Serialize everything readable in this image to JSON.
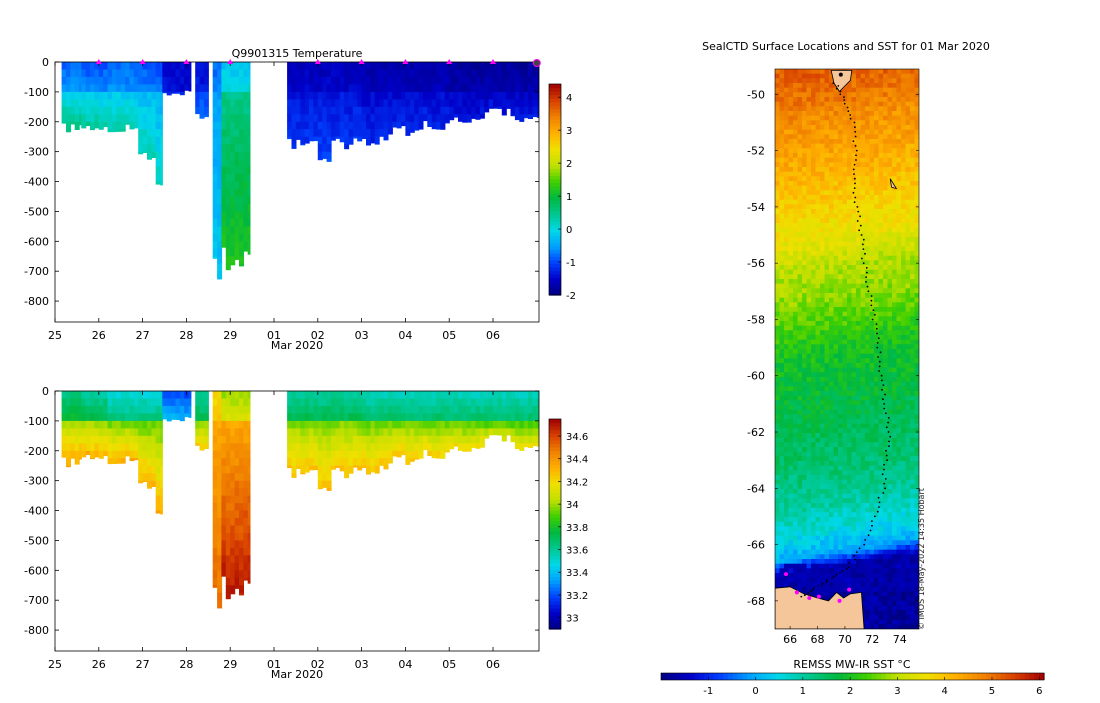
{
  "colors": {
    "land": "#f5c69a",
    "track": "#000000",
    "marker": "#ff00ff",
    "cmap": [
      "#000080",
      "#0000c8",
      "#0040ff",
      "#00a0ff",
      "#00d8e8",
      "#00c890",
      "#00b840",
      "#40d000",
      "#c0e000",
      "#f0e000",
      "#ffb000",
      "#f08000",
      "#d84000",
      "#a00000"
    ]
  },
  "chart_data": [
    {
      "type": "heatmap",
      "id": "temp",
      "title": "Q9901315  Temperature",
      "xlabel": "Mar 2020",
      "ylabel": "",
      "x_ticks": [
        "25",
        "26",
        "27",
        "28",
        "29",
        "01",
        "02",
        "03",
        "04",
        "05",
        "06"
      ],
      "x_range_days": [
        25,
        36.05
      ],
      "y_ticks": [
        0,
        -100,
        -200,
        -300,
        -400,
        -500,
        -600,
        -700,
        -800
      ],
      "ylim": [
        -870,
        0
      ],
      "colorbar": {
        "ticks": [
          "4",
          "3",
          "2",
          "1",
          "0",
          "-1",
          "-2"
        ],
        "range": [
          -2,
          4.4
        ]
      },
      "profile_markers_day": [
        26,
        27,
        28,
        29,
        31,
        32,
        33,
        34,
        35,
        36
      ],
      "profiles": [
        {
          "start": 25.15,
          "end": 25.6,
          "depth": 240,
          "deep_value": 0.6,
          "upper_value": -0.8
        },
        {
          "start": 25.6,
          "end": 26.2,
          "depth": 245,
          "deep_value": 0.5,
          "upper_value": -0.9
        },
        {
          "start": 26.2,
          "end": 26.9,
          "depth": 240,
          "deep_value": 0.4,
          "upper_value": -0.8
        },
        {
          "start": 26.9,
          "end": 27.1,
          "depth": 320,
          "deep_value": 0.3,
          "upper_value": -0.9
        },
        {
          "start": 27.1,
          "end": 27.4,
          "depth": 330,
          "deep_value": 0.3,
          "upper_value": -0.9
        },
        {
          "start": 27.3,
          "end": 27.45,
          "depth": 440,
          "deep_value": 0.2,
          "upper_value": -1.0
        },
        {
          "start": 27.45,
          "end": 28.1,
          "depth": 110,
          "deep_value": -1.0,
          "upper_value": -1.5
        },
        {
          "start": 28.2,
          "end": 28.5,
          "depth": 190,
          "deep_value": -0.7,
          "upper_value": -1.4
        },
        {
          "start": 28.6,
          "end": 28.8,
          "depth": 745,
          "deep_value": -0.2,
          "upper_value": -0.8
        },
        {
          "start": 28.8,
          "end": 29.45,
          "depth": 700,
          "deep_value": 1.2,
          "upper_value": -0.2
        },
        {
          "start": 30.3,
          "end": 31.0,
          "depth": 300,
          "deep_value": -1.1,
          "upper_value": -1.6
        },
        {
          "start": 31.0,
          "end": 31.3,
          "depth": 340,
          "deep_value": -1.0,
          "upper_value": -1.6
        },
        {
          "start": 31.3,
          "end": 32.0,
          "depth": 290,
          "deep_value": -1.1,
          "upper_value": -1.6
        },
        {
          "start": 32.0,
          "end": 32.6,
          "depth": 280,
          "deep_value": -1.2,
          "upper_value": -1.7
        },
        {
          "start": 32.6,
          "end": 33.2,
          "depth": 250,
          "deep_value": -1.2,
          "upper_value": -1.7
        },
        {
          "start": 33.2,
          "end": 34.0,
          "depth": 230,
          "deep_value": -1.2,
          "upper_value": -1.7
        },
        {
          "start": 34.0,
          "end": 34.8,
          "depth": 210,
          "deep_value": -1.3,
          "upper_value": -1.8
        },
        {
          "start": 34.8,
          "end": 35.5,
          "depth": 180,
          "deep_value": -1.3,
          "upper_value": -1.8
        },
        {
          "start": 35.5,
          "end": 36.05,
          "depth": 200,
          "deep_value": -1.3,
          "upper_value": -1.8
        }
      ]
    },
    {
      "type": "heatmap",
      "id": "salt",
      "title": "",
      "xlabel": "Mar 2020",
      "ylabel": "",
      "x_ticks": [
        "25",
        "26",
        "27",
        "28",
        "29",
        "01",
        "02",
        "03",
        "04",
        "05",
        "06"
      ],
      "x_range_days": [
        25,
        36.05
      ],
      "y_ticks": [
        0,
        -100,
        -200,
        -300,
        -400,
        -500,
        -600,
        -700,
        -800
      ],
      "ylim": [
        -870,
        0
      ],
      "colorbar": {
        "ticks": [
          "34.6",
          "34.4",
          "34.2",
          "34",
          "33.8",
          "33.6",
          "33.4",
          "33.2",
          "33"
        ],
        "range": [
          32.9,
          34.75
        ]
      },
      "profiles": [
        {
          "start": 25.15,
          "end": 25.6,
          "depth": 260,
          "deep_value": 34.37,
          "upper_value": 33.65
        },
        {
          "start": 25.6,
          "end": 26.2,
          "depth": 245,
          "deep_value": 34.36,
          "upper_value": 33.6
        },
        {
          "start": 26.2,
          "end": 26.9,
          "depth": 250,
          "deep_value": 34.36,
          "upper_value": 33.5
        },
        {
          "start": 26.9,
          "end": 27.1,
          "depth": 320,
          "deep_value": 34.34,
          "upper_value": 33.5
        },
        {
          "start": 27.1,
          "end": 27.4,
          "depth": 330,
          "deep_value": 34.34,
          "upper_value": 33.5
        },
        {
          "start": 27.3,
          "end": 27.45,
          "depth": 440,
          "deep_value": 34.35,
          "upper_value": 33.5
        },
        {
          "start": 27.45,
          "end": 28.1,
          "depth": 100,
          "deep_value": 34.2,
          "upper_value": 33.2
        },
        {
          "start": 28.2,
          "end": 28.5,
          "depth": 200,
          "deep_value": 34.3,
          "upper_value": 33.6
        },
        {
          "start": 28.6,
          "end": 28.8,
          "depth": 745,
          "deep_value": 34.5,
          "upper_value": 34.2
        },
        {
          "start": 28.8,
          "end": 29.45,
          "depth": 700,
          "deep_value": 34.7,
          "upper_value": 34.0
        },
        {
          "start": 30.3,
          "end": 31.0,
          "depth": 300,
          "deep_value": 34.3,
          "upper_value": 33.6
        },
        {
          "start": 31.0,
          "end": 31.3,
          "depth": 340,
          "deep_value": 34.3,
          "upper_value": 33.6
        },
        {
          "start": 31.3,
          "end": 32.0,
          "depth": 290,
          "deep_value": 34.3,
          "upper_value": 33.6
        },
        {
          "start": 32.0,
          "end": 32.6,
          "depth": 280,
          "deep_value": 34.3,
          "upper_value": 33.55
        },
        {
          "start": 32.6,
          "end": 33.2,
          "depth": 250,
          "deep_value": 34.3,
          "upper_value": 33.55
        },
        {
          "start": 33.2,
          "end": 34.0,
          "depth": 230,
          "deep_value": 34.28,
          "upper_value": 33.55
        },
        {
          "start": 34.0,
          "end": 34.8,
          "depth": 210,
          "deep_value": 34.25,
          "upper_value": 33.55
        },
        {
          "start": 34.8,
          "end": 35.5,
          "depth": 170,
          "deep_value": 34.2,
          "upper_value": 33.55
        },
        {
          "start": 35.5,
          "end": 36.05,
          "depth": 200,
          "deep_value": 34.2,
          "upper_value": 33.55
        }
      ]
    },
    {
      "type": "heatmap",
      "id": "map",
      "title": "SealCTD Surface Locations and SST for 01 Mar 2020",
      "xlabel": "REMSS MW-IR SST °C",
      "credit": "© IMOS 18-May-2022 14:35 Hobart",
      "x_ticks": [
        "66",
        "68",
        "70",
        "72",
        "74"
      ],
      "lon_range": [
        64.9,
        75.4
      ],
      "y_ticks": [
        "-50",
        "-52",
        "-54",
        "-56",
        "-58",
        "-60",
        "-62",
        "-64",
        "-66",
        "-68"
      ],
      "lat_range": [
        -69,
        -49.1
      ],
      "colorbar": {
        "ticks": [
          "-1",
          "0",
          "1",
          "2",
          "3",
          "4",
          "5",
          "6"
        ],
        "range": [
          -2,
          6.1
        ]
      },
      "sst_profile_by_lat": [
        {
          "lat": -49.2,
          "sst": 5.2
        },
        {
          "lat": -51.0,
          "sst": 4.6
        },
        {
          "lat": -53.0,
          "sst": 4.1
        },
        {
          "lat": -55.0,
          "sst": 3.5
        },
        {
          "lat": -56.0,
          "sst": 3.0
        },
        {
          "lat": -57.5,
          "sst": 2.6
        },
        {
          "lat": -59.0,
          "sst": 2.0
        },
        {
          "lat": -61.0,
          "sst": 1.7
        },
        {
          "lat": -63.0,
          "sst": 1.4
        },
        {
          "lat": -64.5,
          "sst": 1.0
        },
        {
          "lat": -65.5,
          "sst": 0.5
        },
        {
          "lat": -66.2,
          "sst": 0.0
        },
        {
          "lat": -66.7,
          "sst": -1.6
        },
        {
          "lat": -69.0,
          "sst": -1.8
        }
      ],
      "track": [
        {
          "lon": 69.3,
          "lat": -49.6
        },
        {
          "lon": 70.0,
          "lat": -50.2
        },
        {
          "lon": 70.6,
          "lat": -51.0
        },
        {
          "lon": 70.8,
          "lat": -52.0
        },
        {
          "lon": 70.6,
          "lat": -53.0
        },
        {
          "lon": 70.9,
          "lat": -54.0
        },
        {
          "lon": 71.2,
          "lat": -55.0
        },
        {
          "lon": 71.4,
          "lat": -56.0
        },
        {
          "lon": 71.8,
          "lat": -57.0
        },
        {
          "lon": 72.1,
          "lat": -58.0
        },
        {
          "lon": 72.5,
          "lat": -59.0
        },
        {
          "lon": 72.6,
          "lat": -60.0
        },
        {
          "lon": 72.9,
          "lat": -61.0
        },
        {
          "lon": 73.2,
          "lat": -62.0
        },
        {
          "lon": 73.0,
          "lat": -63.0
        },
        {
          "lon": 72.8,
          "lat": -64.0
        },
        {
          "lon": 72.2,
          "lat": -65.0
        },
        {
          "lon": 71.4,
          "lat": -66.0
        },
        {
          "lon": 70.2,
          "lat": -66.8
        },
        {
          "lon": 69.0,
          "lat": -67.2
        },
        {
          "lon": 67.6,
          "lat": -67.6
        },
        {
          "lon": 66.8,
          "lat": -67.9
        }
      ],
      "profile_locations": [
        {
          "lon": 65.7,
          "lat": -67.05
        },
        {
          "lon": 66.5,
          "lat": -67.7
        },
        {
          "lon": 67.4,
          "lat": -67.9
        },
        {
          "lon": 68.1,
          "lat": -67.85
        },
        {
          "lon": 69.6,
          "lat": -68.0
        },
        {
          "lon": 70.3,
          "lat": -67.6
        }
      ],
      "start_marker": {
        "lon": 69.7,
        "lat": -49.3
      },
      "small_island": {
        "lon": 73.5,
        "lat": -53.1
      }
    }
  ]
}
